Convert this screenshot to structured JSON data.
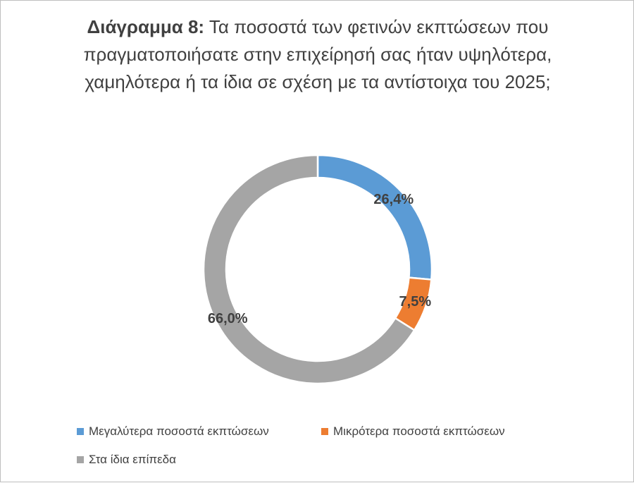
{
  "chart_data": {
    "type": "pie",
    "title_prefix": "Διάγραμμα 8:",
    "title": "Τα ποσοστά των φετινών εκπτώσεων που πραγματοποιήσατε στην επιχείρησή σας ήταν υψηλότερα, χαμηλότερα ή τα ίδια σε σχέση με τα αντίστοιχα του 2025;",
    "categories": [
      "Μεγαλύτερα ποσοστά εκπτώσεων",
      "Μικρότερα ποσοστά εκπτώσεων",
      "Στα ίδια επίπεδα"
    ],
    "values": [
      26.4,
      7.5,
      66.0
    ],
    "value_labels": [
      "26,4%",
      "7,5%",
      "66,0%"
    ],
    "colors": [
      "#5b9bd5",
      "#ed7d31",
      "#a5a5a5"
    ],
    "legend": "bottom"
  }
}
